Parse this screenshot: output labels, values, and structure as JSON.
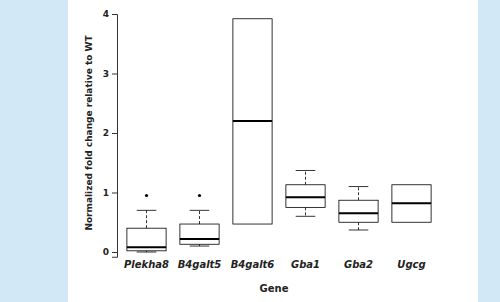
{
  "chart_data": {
    "type": "box",
    "x_label": "Gene",
    "y_label": "Normalized fold change relative to WT",
    "categories": [
      "Plekha8",
      "B4galt5",
      "B4galt6",
      "Gba1",
      "Gba2",
      "Ugcg"
    ],
    "boxes": [
      {
        "whisker_low": 0.0,
        "q1": 0.02,
        "median": 0.08,
        "q3": 0.4,
        "whisker_high": 0.7,
        "outliers": [
          0.95
        ]
      },
      {
        "whisker_low": 0.1,
        "q1": 0.13,
        "median": 0.22,
        "q3": 0.47,
        "whisker_high": 0.7,
        "outliers": [
          0.95
        ]
      },
      {
        "whisker_low": 0.47,
        "q1": 0.47,
        "median": 2.2,
        "q3": 3.92,
        "whisker_high": 3.92,
        "outliers": []
      },
      {
        "whisker_low": 0.6,
        "q1": 0.75,
        "median": 0.92,
        "q3": 1.13,
        "whisker_high": 1.37,
        "outliers": []
      },
      {
        "whisker_low": 0.37,
        "q1": 0.5,
        "median": 0.65,
        "q3": 0.87,
        "whisker_high": 1.1,
        "outliers": []
      },
      {
        "whisker_low": 0.5,
        "q1": 0.5,
        "median": 0.82,
        "q3": 1.13,
        "whisker_high": 1.13,
        "outliers": []
      }
    ],
    "color": "#000000",
    "ylim": [
      -0.08,
      4
    ],
    "yticks": [
      0,
      1,
      2,
      3,
      4
    ],
    "grid": false
  }
}
